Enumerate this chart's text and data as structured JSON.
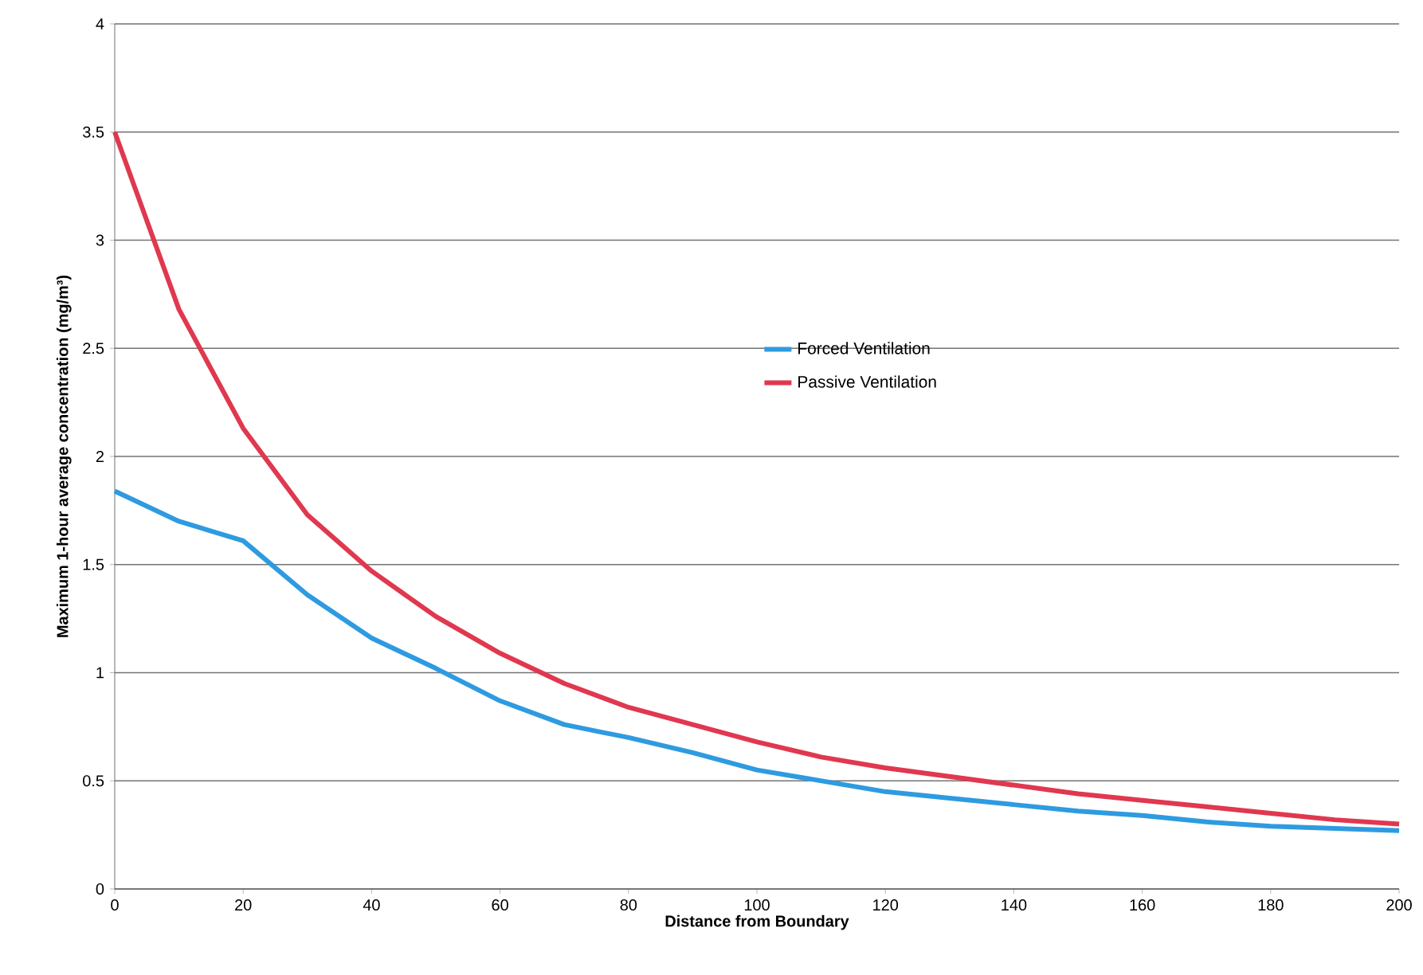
{
  "chart_data": {
    "type": "line",
    "xlabel": "Distance from Boundary",
    "ylabel": "Maximum 1-hour average concentration (mg/m³)",
    "x": [
      0,
      10,
      20,
      30,
      40,
      50,
      60,
      70,
      80,
      90,
      100,
      110,
      120,
      130,
      140,
      150,
      160,
      170,
      180,
      190,
      200
    ],
    "series": [
      {
        "name": "Forced Ventilation",
        "color": "#2e9be0",
        "values": [
          1.84,
          1.7,
          1.61,
          1.36,
          1.16,
          1.02,
          0.87,
          0.76,
          0.7,
          0.63,
          0.55,
          0.5,
          0.45,
          0.42,
          0.39,
          0.36,
          0.34,
          0.31,
          0.29,
          0.28,
          0.27
        ]
      },
      {
        "name": "Passive Ventilation",
        "color": "#e0384f",
        "values": [
          3.5,
          2.68,
          2.13,
          1.73,
          1.47,
          1.26,
          1.09,
          0.95,
          0.84,
          0.76,
          0.68,
          0.61,
          0.56,
          0.52,
          0.48,
          0.44,
          0.41,
          0.38,
          0.35,
          0.32,
          0.3
        ]
      }
    ],
    "xlim": [
      0,
      200
    ],
    "ylim": [
      0,
      4
    ],
    "xticks": [
      0,
      20,
      40,
      60,
      80,
      100,
      120,
      140,
      160,
      180,
      200
    ],
    "yticks": [
      0,
      0.5,
      1,
      1.5,
      2,
      2.5,
      3,
      3.5,
      4
    ],
    "grid": "y",
    "legend": "center",
    "marker": "none",
    "line_style": "solid"
  }
}
